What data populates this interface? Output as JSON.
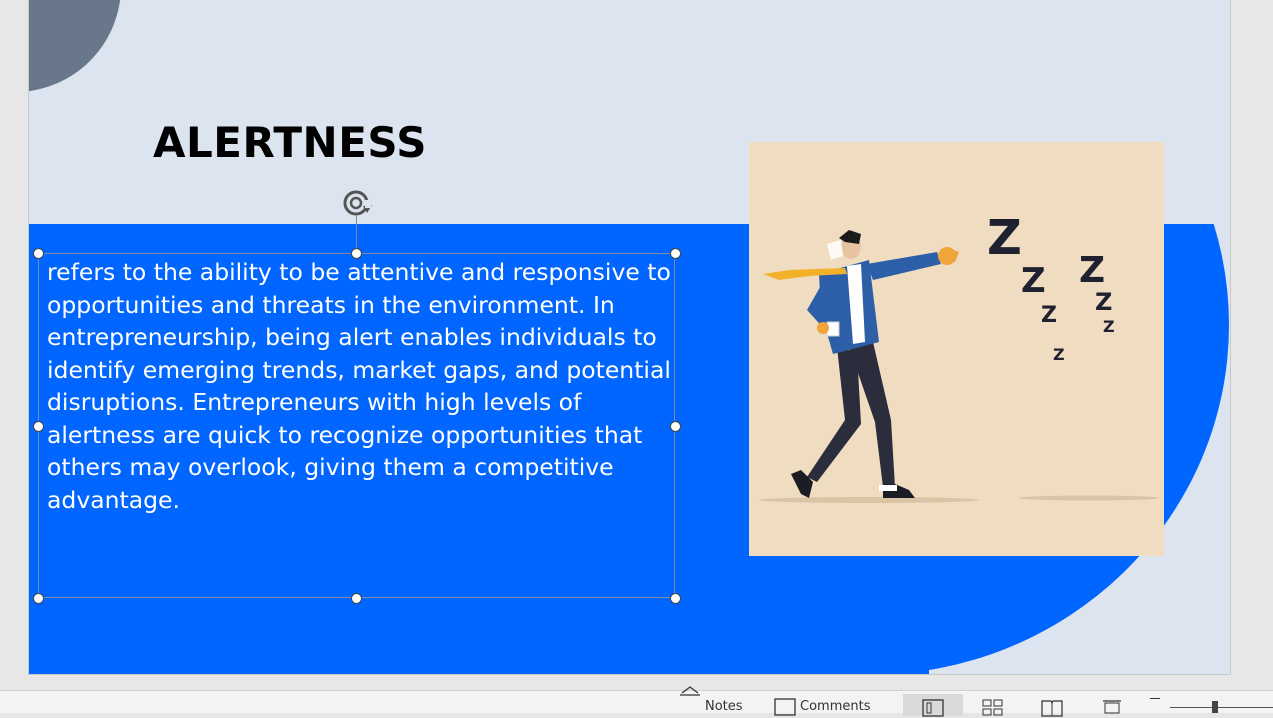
{
  "slide": {
    "title": "ALERTNESS",
    "body": "refers to the ability to be attentive and responsive to opportunities and threats in the environment. In entrepreneurship, being alert enables individuals to identify emerging trends, market gaps, and potential disruptions. Entrepreneurs with high levels of alertness are quick to recognize opportunities that others may overlook, giving them a competitive advantage.",
    "illustration": "businessman-punching-sleep-zzz-illustration"
  },
  "status_bar": {
    "notes_label": "Notes",
    "comments_label": "Comments",
    "views": [
      "normal-view-icon",
      "slide-sorter-icon",
      "reading-view-icon",
      "slide-show-icon"
    ],
    "active_view": "normal-view-icon"
  },
  "colors": {
    "slide_background": "#dbe4ef",
    "accent_blue": "#0066ff",
    "corner_circle": "#68778a",
    "illustration_background": "#efdcc1"
  }
}
